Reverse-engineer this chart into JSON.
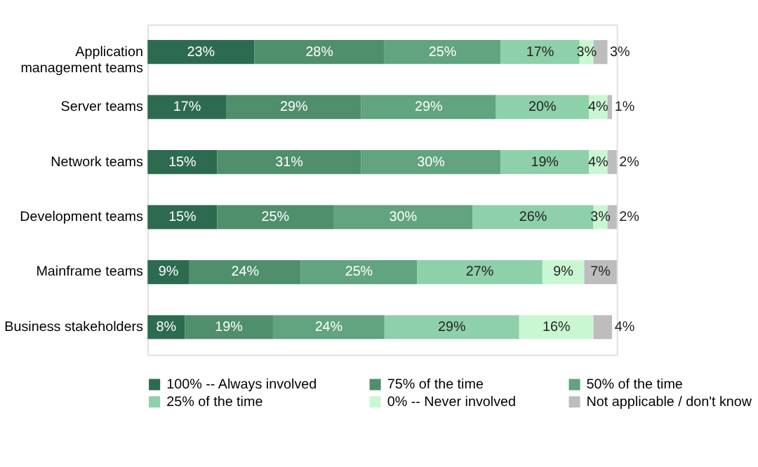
{
  "chart_data": {
    "type": "bar",
    "orientation": "horizontal",
    "stacked": true,
    "legend": "bottom",
    "grid": false,
    "categories": [
      "Application management teams",
      "Server teams",
      "Network teams",
      "Development teams",
      "Mainframe teams",
      "Business stakeholders"
    ],
    "series": [
      {
        "name": "100% -- Always involved",
        "color": "#2d6b50",
        "values": [
          23,
          17,
          15,
          15,
          9,
          8
        ],
        "value_labels": [
          "23%",
          "17%",
          "15%",
          "15%",
          "9%",
          "8%"
        ]
      },
      {
        "name": "75% of the time",
        "color": "#4f8f6c",
        "values": [
          28,
          29,
          31,
          25,
          24,
          19
        ],
        "value_labels": [
          "28%",
          "29%",
          "31%",
          "25%",
          "24%",
          "19%"
        ]
      },
      {
        "name": "50% of the time",
        "color": "#61a47f",
        "values": [
          25,
          29,
          30,
          30,
          25,
          24
        ],
        "value_labels": [
          "25%",
          "29%",
          "30%",
          "30%",
          "25%",
          "24%"
        ]
      },
      {
        "name": "25% of the time",
        "color": "#8ed0a9",
        "values": [
          17,
          20,
          19,
          26,
          27,
          29
        ],
        "value_labels": [
          "17%",
          "20%",
          "19%",
          "26%",
          "27%",
          "29%"
        ]
      },
      {
        "name": "0% -- Never involved",
        "color": "#c9f7d2",
        "values": [
          3,
          4,
          4,
          3,
          9,
          16
        ],
        "value_labels": [
          "3%",
          "4%",
          "4%",
          "3%",
          "9%",
          "16%"
        ]
      },
      {
        "name": "Not applicable / don't know",
        "color": "#bdbdbd",
        "values": [
          3,
          1,
          2,
          2,
          7,
          4
        ],
        "value_labels": [
          "3%",
          "1%",
          "2%",
          "2%",
          "7%",
          "4%"
        ]
      }
    ]
  }
}
